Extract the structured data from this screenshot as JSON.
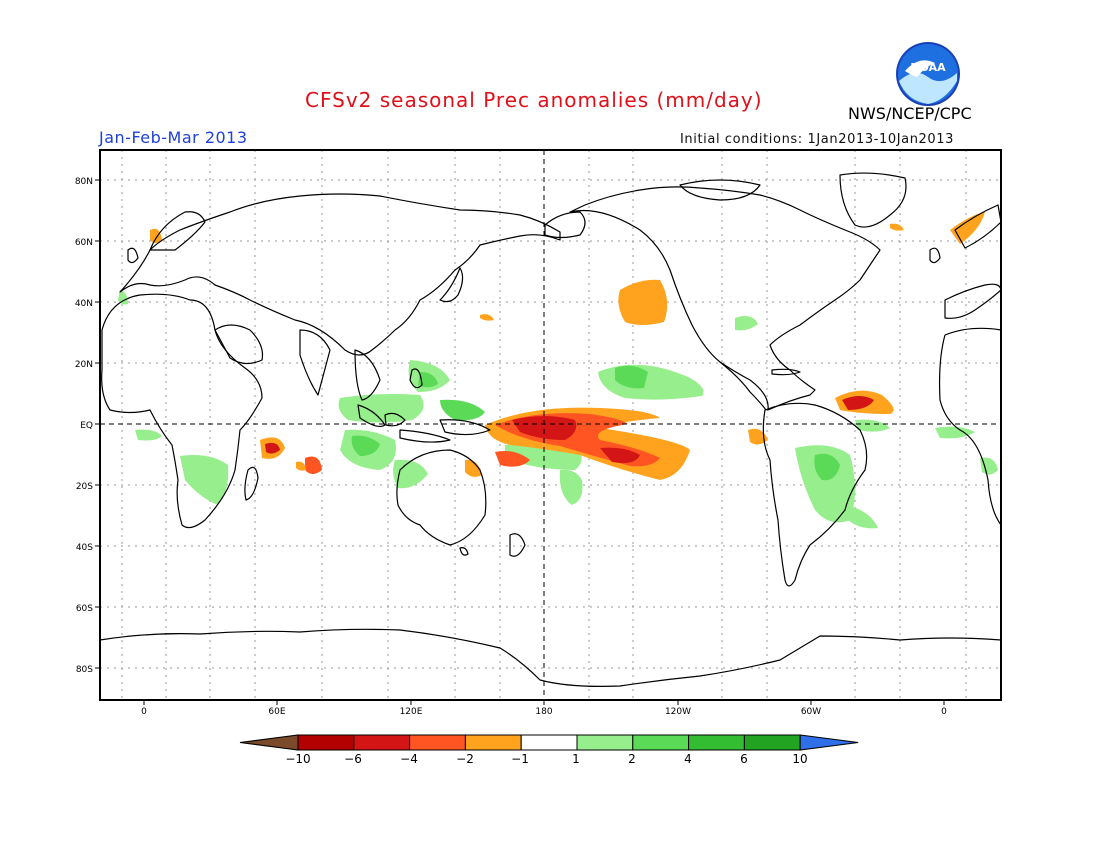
{
  "header": {
    "title": "CFSv2 seasonal Prec anomalies (mm/day)",
    "period": "Jan-Feb-Mar 2013",
    "initial_conditions": "Initial conditions: 1Jan2013-10Jan2013",
    "agency": "NWS/NCEP/CPC",
    "logo_text": "NOAA"
  },
  "map": {
    "lat_labels": [
      "80N",
      "60N",
      "40N",
      "20N",
      "EQ",
      "20S",
      "40S",
      "60S",
      "80S"
    ],
    "lon_labels": [
      "0",
      "60E",
      "120E",
      "180",
      "120W",
      "60W",
      "0"
    ],
    "gridlines": true,
    "dashed_reference_lines": [
      "EQ",
      "180"
    ]
  },
  "legend": {
    "labels": [
      "−10",
      "−6",
      "−4",
      "−2",
      "−1",
      "1",
      "2",
      "4",
      "6",
      "10"
    ],
    "colors": [
      "#7a4a2a",
      "#b30000",
      "#d41515",
      "#ff5522",
      "#ffa31f",
      "#ffffff",
      "#96ee8c",
      "#5ada57",
      "#33bd33",
      "#22a321",
      "#2f6fe8"
    ]
  },
  "colors": {
    "title": "#e0101a",
    "period": "#1f3fd9",
    "dry_strong": "#d41515",
    "dry_medium": "#ff5522",
    "dry_weak": "#ffa31f",
    "wet_weak": "#96ee8c",
    "wet_medium": "#5ada57"
  }
}
